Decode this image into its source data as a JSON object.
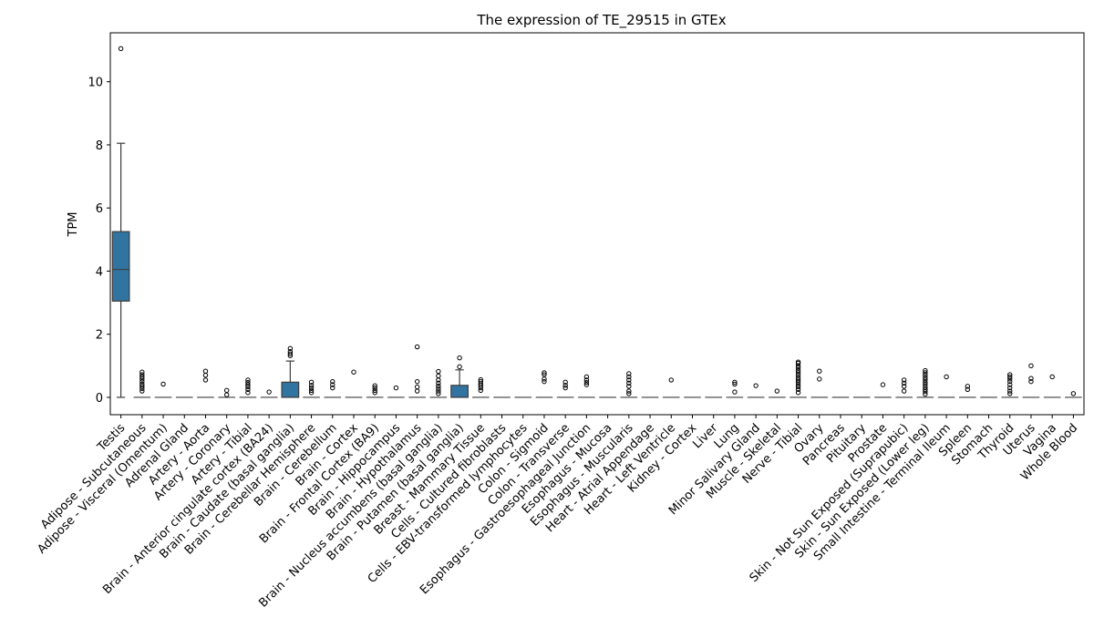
{
  "chart_data": {
    "type": "box",
    "title": "The expression of TE_29515 in GTEx",
    "xlabel": "",
    "ylabel": "TPM",
    "ylim": [
      -0.55,
      11.55
    ],
    "yticks": [
      0,
      2,
      4,
      6,
      8,
      10
    ],
    "grid": false,
    "legend": "none",
    "box_color": "#3274a1",
    "categories": [
      "Testis",
      "Adipose - Subcutaneous",
      "Adipose - Visceral (Omentum)",
      "Adrenal Gland",
      "Artery - Aorta",
      "Artery - Coronary",
      "Artery - Tibial",
      "Brain - Anterior cingulate cortex (BA24)",
      "Brain - Caudate (basal ganglia)",
      "Brain - Cerebellar Hemisphere",
      "Brain - Cerebellum",
      "Brain - Cortex",
      "Brain - Frontal Cortex (BA9)",
      "Brain - Hippocampus",
      "Brain - Hypothalamus",
      "Brain - Nucleus accumbens (basal ganglia)",
      "Brain - Putamen (basal ganglia)",
      "Breast - Mammary Tissue",
      "Cells - Cultured fibroblasts",
      "Cells - EBV-transformed lymphocytes",
      "Colon - Sigmoid",
      "Colon - Transverse",
      "Esophagus - Gastroesophageal Junction",
      "Esophagus - Mucosa",
      "Esophagus - Muscularis",
      "Heart - Atrial Appendage",
      "Heart - Left Ventricle",
      "Kidney - Cortex",
      "Liver",
      "Lung",
      "Minor Salivary Gland",
      "Muscle - Skeletal",
      "Nerve - Tibial",
      "Ovary",
      "Pancreas",
      "Pituitary",
      "Prostate",
      "Skin - Not Sun Exposed (Suprapubic)",
      "Skin - Sun Exposed (Lower leg)",
      "Small Intestine - Terminal Ileum",
      "Spleen",
      "Stomach",
      "Thyroid",
      "Uterus",
      "Vagina",
      "Whole Blood"
    ],
    "boxes": [
      {
        "q1": 3.05,
        "median": 4.05,
        "q3": 5.25,
        "whislo": 0,
        "whishi": 8.05,
        "fliers": [
          11.05
        ]
      },
      {
        "q1": 0,
        "median": 0,
        "q3": 0,
        "whislo": 0,
        "whishi": 0,
        "fliers": [
          0.2,
          0.28,
          0.35,
          0.42,
          0.5,
          0.58,
          0.65,
          0.72,
          0.8
        ]
      },
      {
        "q1": 0,
        "median": 0,
        "q3": 0,
        "whislo": 0,
        "whishi": 0,
        "fliers": [
          0.42
        ]
      },
      {
        "q1": 0,
        "median": 0,
        "q3": 0,
        "whislo": 0,
        "whishi": 0,
        "fliers": []
      },
      {
        "q1": 0,
        "median": 0,
        "q3": 0,
        "whislo": 0,
        "whishi": 0,
        "fliers": [
          0.55,
          0.7,
          0.83
        ]
      },
      {
        "q1": 0,
        "median": 0,
        "q3": 0,
        "whislo": 0,
        "whishi": 0,
        "fliers": [
          0.08,
          0.22
        ]
      },
      {
        "q1": 0,
        "median": 0,
        "q3": 0,
        "whislo": 0,
        "whishi": 0,
        "fliers": [
          0.15,
          0.25,
          0.33,
          0.4,
          0.47,
          0.55
        ]
      },
      {
        "q1": 0,
        "median": 0,
        "q3": 0,
        "whislo": 0,
        "whishi": 0,
        "fliers": [
          0.17
        ]
      },
      {
        "q1": 0,
        "median": 0,
        "q3": 0.48,
        "whislo": 0,
        "whishi": 1.15,
        "fliers": [
          1.32,
          1.38,
          1.45,
          1.55
        ]
      },
      {
        "q1": 0,
        "median": 0,
        "q3": 0,
        "whislo": 0,
        "whishi": 0,
        "fliers": [
          0.15,
          0.22,
          0.3,
          0.38,
          0.48
        ]
      },
      {
        "q1": 0,
        "median": 0,
        "q3": 0,
        "whislo": 0,
        "whishi": 0,
        "fliers": [
          0.3,
          0.4,
          0.5
        ]
      },
      {
        "q1": 0,
        "median": 0,
        "q3": 0,
        "whislo": 0,
        "whishi": 0,
        "fliers": [
          0.8
        ]
      },
      {
        "q1": 0,
        "median": 0,
        "q3": 0,
        "whislo": 0,
        "whishi": 0,
        "fliers": [
          0.15,
          0.22,
          0.3,
          0.37
        ]
      },
      {
        "q1": 0,
        "median": 0,
        "q3": 0,
        "whislo": 0,
        "whishi": 0,
        "fliers": [
          0.3
        ]
      },
      {
        "q1": 0,
        "median": 0,
        "q3": 0,
        "whislo": 0,
        "whishi": 0,
        "fliers": [
          0.2,
          0.33,
          0.5,
          1.6
        ]
      },
      {
        "q1": 0,
        "median": 0,
        "q3": 0,
        "whislo": 0,
        "whishi": 0,
        "fliers": [
          0.12,
          0.2,
          0.28,
          0.36,
          0.45,
          0.55,
          0.68,
          0.82
        ]
      },
      {
        "q1": 0,
        "median": 0,
        "q3": 0.38,
        "whislo": 0,
        "whishi": 0.87,
        "fliers": [
          0.97,
          1.25
        ]
      },
      {
        "q1": 0,
        "median": 0,
        "q3": 0,
        "whislo": 0,
        "whishi": 0,
        "fliers": [
          0.22,
          0.3,
          0.37,
          0.43,
          0.5,
          0.56
        ]
      },
      {
        "q1": 0,
        "median": 0,
        "q3": 0,
        "whislo": 0,
        "whishi": 0,
        "fliers": []
      },
      {
        "q1": 0,
        "median": 0,
        "q3": 0,
        "whislo": 0,
        "whishi": 0,
        "fliers": []
      },
      {
        "q1": 0,
        "median": 0,
        "q3": 0,
        "whislo": 0,
        "whishi": 0,
        "fliers": [
          0.5,
          0.58,
          0.72,
          0.78
        ]
      },
      {
        "q1": 0,
        "median": 0,
        "q3": 0,
        "whislo": 0,
        "whishi": 0,
        "fliers": [
          0.3,
          0.38,
          0.48
        ]
      },
      {
        "q1": 0,
        "median": 0,
        "q3": 0,
        "whislo": 0,
        "whishi": 0,
        "fliers": [
          0.4,
          0.47,
          0.55,
          0.65
        ]
      },
      {
        "q1": 0,
        "median": 0,
        "q3": 0,
        "whislo": 0,
        "whishi": 0,
        "fliers": []
      },
      {
        "q1": 0,
        "median": 0,
        "q3": 0,
        "whislo": 0,
        "whishi": 0,
        "fliers": [
          0.12,
          0.2,
          0.35,
          0.45,
          0.55,
          0.65,
          0.75
        ]
      },
      {
        "q1": 0,
        "median": 0,
        "q3": 0,
        "whislo": 0,
        "whishi": 0,
        "fliers": []
      },
      {
        "q1": 0,
        "median": 0,
        "q3": 0,
        "whislo": 0,
        "whishi": 0,
        "fliers": [
          0.55
        ]
      },
      {
        "q1": 0,
        "median": 0,
        "q3": 0,
        "whislo": 0,
        "whishi": 0,
        "fliers": []
      },
      {
        "q1": 0,
        "median": 0,
        "q3": 0,
        "whislo": 0,
        "whishi": 0,
        "fliers": []
      },
      {
        "q1": 0,
        "median": 0,
        "q3": 0,
        "whislo": 0,
        "whishi": 0,
        "fliers": [
          0.17,
          0.42,
          0.48
        ]
      },
      {
        "q1": 0,
        "median": 0,
        "q3": 0,
        "whislo": 0,
        "whishi": 0,
        "fliers": [
          0.37
        ]
      },
      {
        "q1": 0,
        "median": 0,
        "q3": 0,
        "whislo": 0,
        "whishi": 0,
        "fliers": [
          0.2
        ]
      },
      {
        "q1": 0,
        "median": 0,
        "q3": 0,
        "whislo": 0,
        "whishi": 0,
        "fliers": [
          0.15,
          0.25,
          0.33,
          0.4,
          0.48,
          0.55,
          0.62,
          0.7,
          0.78,
          0.85,
          0.93,
          1.0,
          1.08,
          1.12
        ]
      },
      {
        "q1": 0,
        "median": 0,
        "q3": 0,
        "whislo": 0,
        "whishi": 0,
        "fliers": [
          0.58,
          0.83
        ]
      },
      {
        "q1": 0,
        "median": 0,
        "q3": 0,
        "whislo": 0,
        "whishi": 0,
        "fliers": []
      },
      {
        "q1": 0,
        "median": 0,
        "q3": 0,
        "whislo": 0,
        "whishi": 0,
        "fliers": []
      },
      {
        "q1": 0,
        "median": 0,
        "q3": 0,
        "whislo": 0,
        "whishi": 0,
        "fliers": [
          0.4
        ]
      },
      {
        "q1": 0,
        "median": 0,
        "q3": 0,
        "whislo": 0,
        "whishi": 0,
        "fliers": [
          0.2,
          0.35,
          0.45,
          0.55
        ]
      },
      {
        "q1": 0,
        "median": 0,
        "q3": 0,
        "whislo": 0,
        "whishi": 0,
        "fliers": [
          0.1,
          0.18,
          0.25,
          0.32,
          0.4,
          0.47,
          0.55,
          0.62,
          0.7,
          0.78,
          0.85
        ]
      },
      {
        "q1": 0,
        "median": 0,
        "q3": 0,
        "whislo": 0,
        "whishi": 0,
        "fliers": [
          0.65
        ]
      },
      {
        "q1": 0,
        "median": 0,
        "q3": 0,
        "whislo": 0,
        "whishi": 0,
        "fliers": [
          0.25,
          0.35
        ]
      },
      {
        "q1": 0,
        "median": 0,
        "q3": 0,
        "whislo": 0,
        "whishi": 0,
        "fliers": []
      },
      {
        "q1": 0,
        "median": 0,
        "q3": 0,
        "whislo": 0,
        "whishi": 0,
        "fliers": [
          0.12,
          0.2,
          0.3,
          0.4,
          0.5,
          0.58,
          0.65,
          0.72
        ]
      },
      {
        "q1": 0,
        "median": 0,
        "q3": 0,
        "whislo": 0,
        "whishi": 0,
        "fliers": [
          0.5,
          0.6,
          1.0
        ]
      },
      {
        "q1": 0,
        "median": 0,
        "q3": 0,
        "whislo": 0,
        "whishi": 0,
        "fliers": [
          0.65
        ]
      },
      {
        "q1": 0,
        "median": 0,
        "q3": 0,
        "whislo": 0,
        "whishi": 0,
        "fliers": [
          0.12
        ]
      }
    ]
  }
}
